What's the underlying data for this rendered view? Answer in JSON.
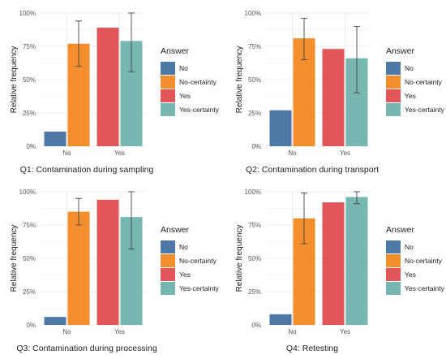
{
  "legend_title": "Answer",
  "legend_entries": [
    "No",
    "No-certainty",
    "Yes",
    "Yes-certainty"
  ],
  "colors": {
    "No": "#4e79a7",
    "No-certainty": "#f28e2b",
    "Yes": "#e15759",
    "Yes-certainty": "#76b7b2",
    "grid": "#ececec",
    "error_bar": "#444444"
  },
  "chart_data": [
    {
      "type": "bar",
      "title": "Q1: Contamination during sampling",
      "ylabel": "Relative frequency",
      "xlabel": "",
      "categories": [
        "No",
        "Yes"
      ],
      "yticks": [
        "0%",
        "25%",
        "50%",
        "75%",
        "100%"
      ],
      "ylim": [
        0,
        1
      ],
      "grid": true,
      "legend_position": "right",
      "series": [
        {
          "name": "No",
          "values": [
            0.11,
            null
          ],
          "errors": [
            null,
            null
          ]
        },
        {
          "name": "No-certainty",
          "values": [
            0.77,
            null
          ],
          "errors": [
            [
              0.6,
              0.94
            ],
            null
          ]
        },
        {
          "name": "Yes",
          "values": [
            null,
            0.89
          ],
          "errors": [
            null,
            null
          ]
        },
        {
          "name": "Yes-certainty",
          "values": [
            null,
            0.79
          ],
          "errors": [
            null,
            [
              0.56,
              1.0
            ]
          ]
        }
      ]
    },
    {
      "type": "bar",
      "title": "Q2: Contamination during transport",
      "ylabel": "Relative frequency",
      "xlabel": "",
      "categories": [
        "No",
        "Yes"
      ],
      "yticks": [
        "0%",
        "25%",
        "50%",
        "75%",
        "100%"
      ],
      "ylim": [
        0,
        1
      ],
      "grid": true,
      "legend_position": "right",
      "series": [
        {
          "name": "No",
          "values": [
            0.27,
            null
          ],
          "errors": [
            null,
            null
          ]
        },
        {
          "name": "No-certainty",
          "values": [
            0.81,
            null
          ],
          "errors": [
            [
              0.65,
              0.96
            ],
            null
          ]
        },
        {
          "name": "Yes",
          "values": [
            null,
            0.73
          ],
          "errors": [
            null,
            null
          ]
        },
        {
          "name": "Yes-certainty",
          "values": [
            null,
            0.66
          ],
          "errors": [
            null,
            [
              0.4,
              0.9
            ]
          ]
        }
      ]
    },
    {
      "type": "bar",
      "title": "Q3: Contamination during processing",
      "ylabel": "Relative frequency",
      "xlabel": "",
      "categories": [
        "No",
        "Yes"
      ],
      "yticks": [
        "0%",
        "25%",
        "50%",
        "75%",
        "100%"
      ],
      "ylim": [
        0,
        1
      ],
      "grid": true,
      "legend_position": "right",
      "series": [
        {
          "name": "No",
          "values": [
            0.06,
            null
          ],
          "errors": [
            null,
            null
          ]
        },
        {
          "name": "No-certainty",
          "values": [
            0.85,
            null
          ],
          "errors": [
            [
              0.75,
              0.95
            ],
            null
          ]
        },
        {
          "name": "Yes",
          "values": [
            null,
            0.94
          ],
          "errors": [
            null,
            null
          ]
        },
        {
          "name": "Yes-certainty",
          "values": [
            null,
            0.81
          ],
          "errors": [
            null,
            [
              0.57,
              1.0
            ]
          ]
        }
      ]
    },
    {
      "type": "bar",
      "title": "Q4: Retesting",
      "ylabel": "Relative frequency",
      "xlabel": "",
      "categories": [
        "No",
        "Yes"
      ],
      "yticks": [
        "0%",
        "25%",
        "50%",
        "75%",
        "100%"
      ],
      "ylim": [
        0,
        1
      ],
      "grid": true,
      "legend_position": "right",
      "series": [
        {
          "name": "No",
          "values": [
            0.08,
            null
          ],
          "errors": [
            null,
            null
          ]
        },
        {
          "name": "No-certainty",
          "values": [
            0.8,
            null
          ],
          "errors": [
            [
              0.61,
              0.99
            ],
            null
          ]
        },
        {
          "name": "Yes",
          "values": [
            null,
            0.92
          ],
          "errors": [
            null,
            null
          ]
        },
        {
          "name": "Yes-certainty",
          "values": [
            null,
            0.96
          ],
          "errors": [
            null,
            [
              0.91,
              1.0
            ]
          ]
        }
      ]
    }
  ]
}
